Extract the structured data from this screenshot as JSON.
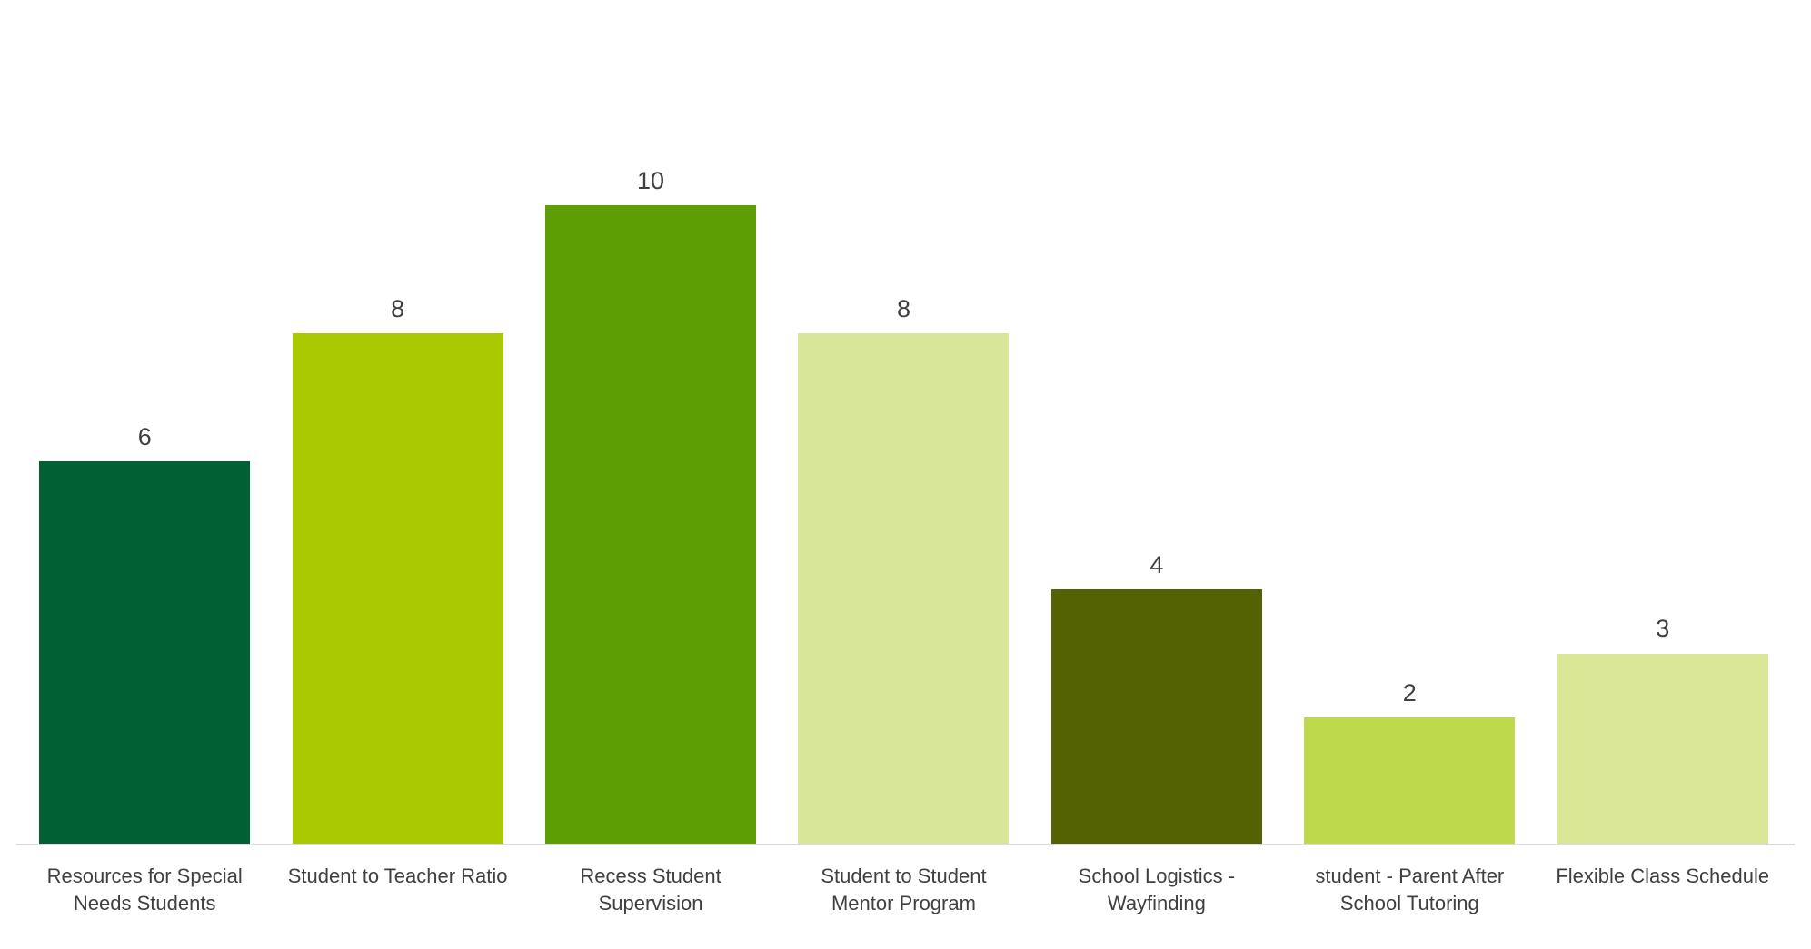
{
  "chart_data": {
    "type": "bar",
    "title": "",
    "xlabel": "",
    "ylabel": "",
    "categories": [
      "Resources for Special Needs Students",
      "Student to Teacher Ratio",
      "Recess Student Supervision",
      "Student to Student Mentor Program",
      "School Logistics - Wayfinding",
      "student - Parent After School Tutoring",
      "Flexible Class Schedule"
    ],
    "values": [
      6,
      8,
      10,
      8,
      4,
      2,
      3
    ],
    "data_labels": [
      "6",
      "8",
      "10",
      "8",
      "4",
      "2",
      "3"
    ],
    "bar_colors": [
      "#016134",
      "#AAC900",
      "#5C9E04",
      "#D8E699",
      "#546203",
      "#BED94C",
      "#D9E796"
    ],
    "ylim": [
      0,
      10
    ],
    "grid": false,
    "legend": false,
    "data_labels_visible": true,
    "label_color": "#404040",
    "axis_line_color": "#D9D9D9",
    "background_color": "#FFFFFF"
  }
}
